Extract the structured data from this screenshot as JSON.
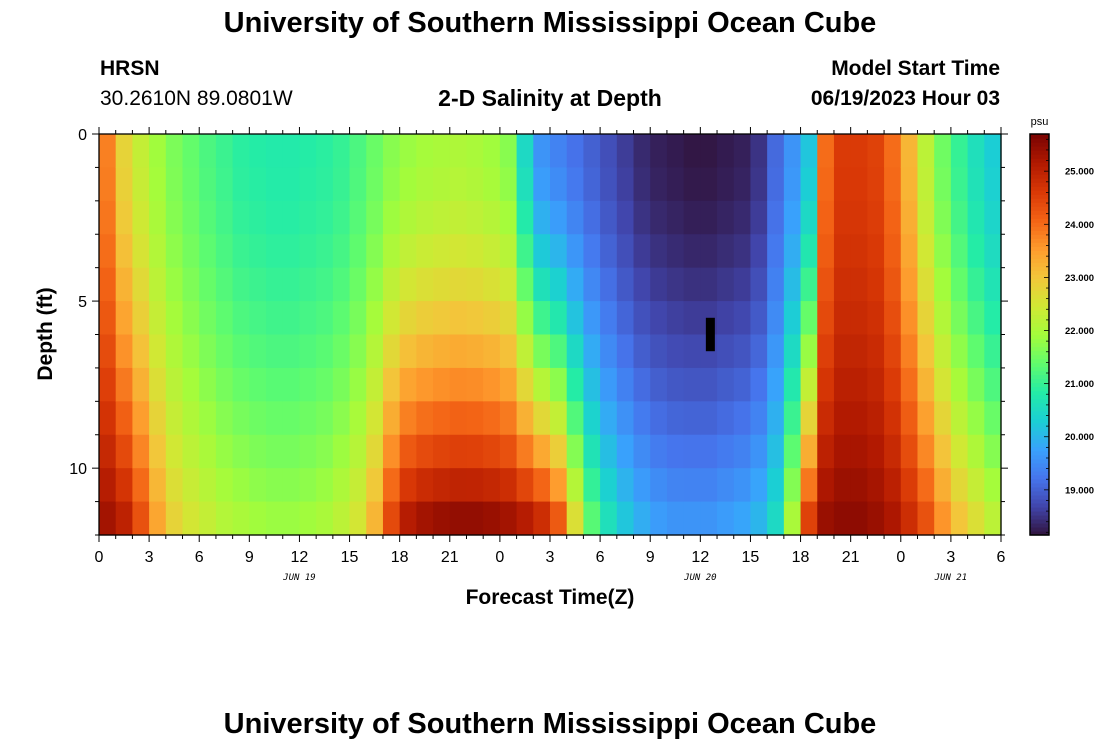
{
  "header": {
    "title": "University of Southern Mississippi Ocean Cube",
    "station": "HRSN",
    "coords": "30.2610N  89.0801W",
    "plot_title": "2-D Salinity at Depth",
    "model_label": "Model Start Time",
    "model_time": "06/19/2023 Hour 03"
  },
  "footer": {
    "title": "University of Southern Mississippi Ocean Cube"
  },
  "colors": {
    "ramp": [
      "#30123b",
      "#4145ab",
      "#4675ed",
      "#39a2fc",
      "#1bcfd4",
      "#24eca6",
      "#61fc6c",
      "#a4fc3b",
      "#d1e834",
      "#f3c63a",
      "#fe9b2d",
      "#f36315",
      "#d93806",
      "#b11901",
      "#7a0402"
    ]
  },
  "chart_data": {
    "type": "heatmap",
    "title": "2-D Salinity at Depth",
    "xlabel": "Forecast Time(Z)",
    "ylabel": "Depth (ft)",
    "x_range_hours": [
      0,
      54
    ],
    "y_range_ft": [
      0,
      12
    ],
    "x_ticks": [
      {
        "h": 0,
        "label": "0"
      },
      {
        "h": 3,
        "label": "3"
      },
      {
        "h": 6,
        "label": "6"
      },
      {
        "h": 9,
        "label": "9"
      },
      {
        "h": 12,
        "label": "12"
      },
      {
        "h": 15,
        "label": "15"
      },
      {
        "h": 18,
        "label": "18"
      },
      {
        "h": 21,
        "label": "21"
      },
      {
        "h": 24,
        "label": "0"
      },
      {
        "h": 27,
        "label": "3"
      },
      {
        "h": 30,
        "label": "6"
      },
      {
        "h": 33,
        "label": "9"
      },
      {
        "h": 36,
        "label": "12"
      },
      {
        "h": 39,
        "label": "15"
      },
      {
        "h": 42,
        "label": "18"
      },
      {
        "h": 45,
        "label": "21"
      },
      {
        "h": 48,
        "label": "0"
      },
      {
        "h": 51,
        "label": "3"
      },
      {
        "h": 54,
        "label": "6"
      }
    ],
    "date_labels": [
      {
        "h": 12,
        "label": "JUN 19"
      },
      {
        "h": 36,
        "label": "JUN 20"
      },
      {
        "h": 51,
        "label": "JUN 21"
      }
    ],
    "y_ticks": [
      {
        "v": 0,
        "label": "0"
      },
      {
        "v": 5,
        "label": "5"
      },
      {
        "v": 10,
        "label": "10"
      }
    ],
    "colorbar": {
      "unit": "psu",
      "min": 18.15,
      "max": 25.7,
      "ticks": [
        {
          "v": 19,
          "label": "19.000"
        },
        {
          "v": 20,
          "label": "20.000"
        },
        {
          "v": 21,
          "label": "21.000"
        },
        {
          "v": 22,
          "label": "22.000"
        },
        {
          "v": 23,
          "label": "23.000"
        },
        {
          "v": 24,
          "label": "24.000"
        },
        {
          "v": 25,
          "label": "25.000"
        }
      ]
    },
    "cols": 54,
    "rows": 12,
    "note": "Approximate salinity (psu): columns = forecast hours 0..53, rows = 1-ft depth bins from surface to bottom",
    "surface_profile": [
      23.8,
      22.8,
      22.3,
      21.9,
      21.6,
      21.4,
      21.2,
      21.05,
      20.9,
      20.85,
      20.8,
      20.8,
      20.85,
      20.9,
      21.0,
      21.2,
      21.45,
      21.7,
      21.85,
      21.95,
      22.0,
      22.05,
      22.0,
      21.9,
      21.7,
      20.5,
      19.6,
      19.4,
      19.2,
      19.0,
      18.8,
      18.6,
      18.4,
      18.3,
      18.25,
      18.2,
      18.2,
      18.25,
      18.3,
      18.5,
      19.1,
      19.6,
      20.2,
      24.0,
      24.6,
      24.6,
      24.5,
      24.0,
      23.2,
      22.2,
      21.5,
      21.0,
      20.6,
      20.3
    ],
    "bottom_profile": [
      25.3,
      25.0,
      24.3,
      23.4,
      22.8,
      22.5,
      22.3,
      22.1,
      22.0,
      21.9,
      21.85,
      21.85,
      21.9,
      22.0,
      22.2,
      22.5,
      23.2,
      24.4,
      25.1,
      25.3,
      25.4,
      25.45,
      25.45,
      25.4,
      25.3,
      25.1,
      24.8,
      24.2,
      22.6,
      21.3,
      20.6,
      20.2,
      19.9,
      19.7,
      19.6,
      19.6,
      19.6,
      19.7,
      19.8,
      20.0,
      20.5,
      22.0,
      24.5,
      25.4,
      25.5,
      25.5,
      25.4,
      25.2,
      24.8,
      24.3,
      23.6,
      23.0,
      22.6,
      22.2
    ],
    "annotations": [
      {
        "type": "missing-data-block",
        "hour": 36.6,
        "depth_from": 5.5,
        "depth_to": 6.5
      }
    ]
  },
  "labels": {
    "date_jun19": "JUN 19",
    "date_jun20": "JUN 20",
    "date_jun21": "JUN 21"
  }
}
